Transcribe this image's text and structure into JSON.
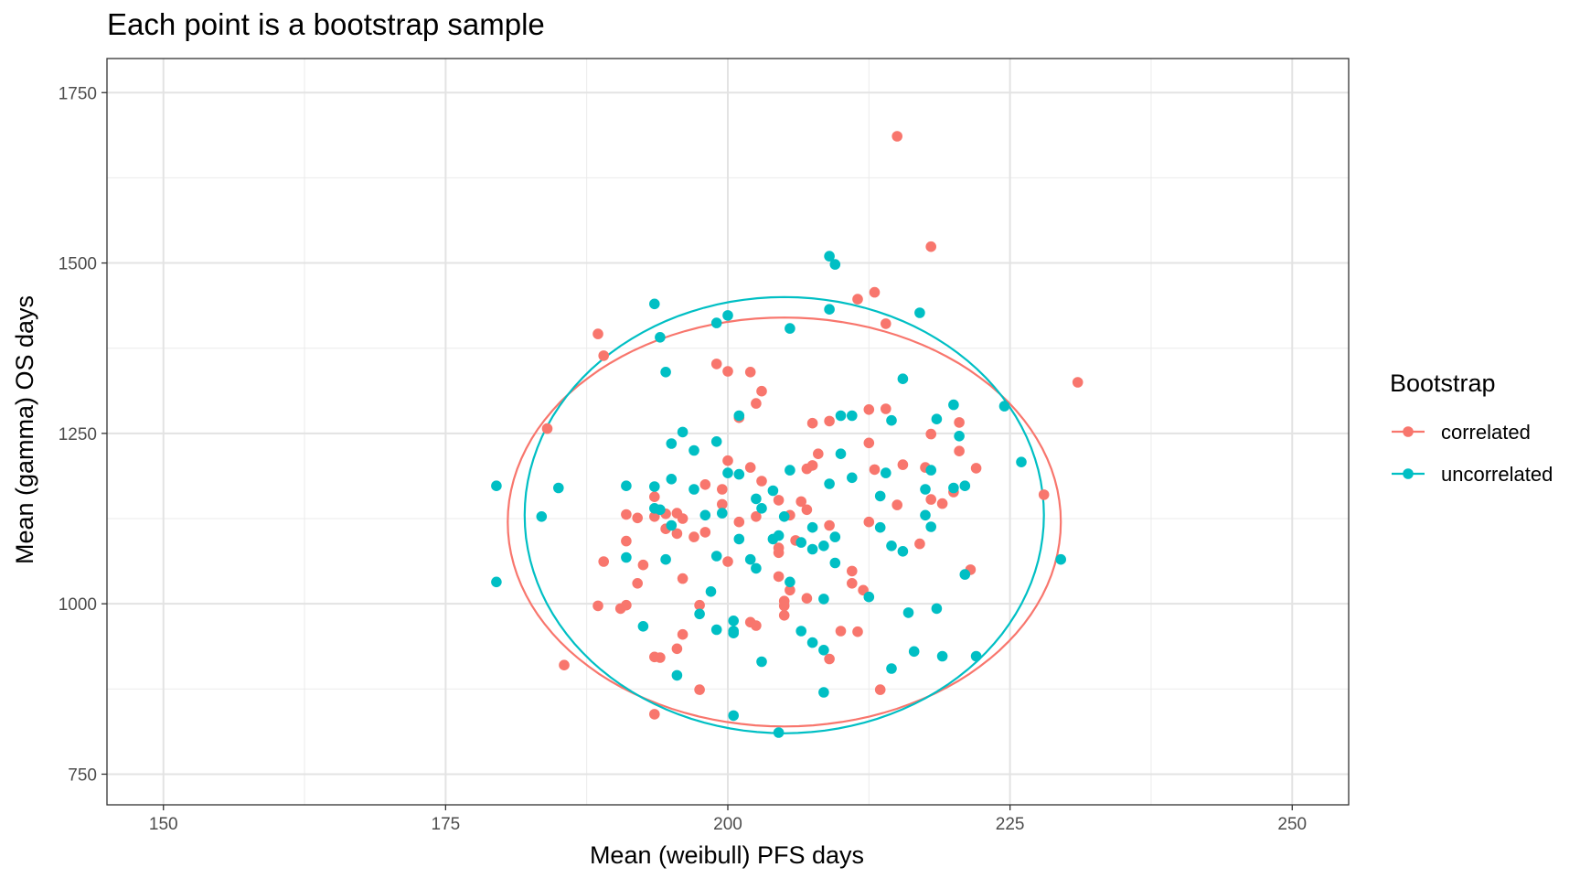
{
  "chart_data": {
    "type": "scatter",
    "title": "Each point is a bootstrap sample",
    "xlabel": "Mean (weibull) PFS days",
    "ylabel": "Mean (gamma) OS days",
    "xlim": [
      145,
      255
    ],
    "ylim": [
      705,
      1800
    ],
    "x_ticks": [
      150,
      175,
      200,
      225,
      250
    ],
    "y_ticks": [
      750,
      1000,
      1250,
      1500,
      1750
    ],
    "grid": true,
    "legend": {
      "title": "Bootstrap",
      "position": "right"
    },
    "series": [
      {
        "name": "correlated",
        "color": "#F8766D",
        "ellipse": {
          "center": [
            205,
            1120
          ],
          "semi_axes": [
            24.5,
            300
          ],
          "rotation_deg": 33
        },
        "points": [
          [
            215,
            1686
          ],
          [
            218,
            1524
          ],
          [
            213,
            1457
          ],
          [
            211.5,
            1447
          ],
          [
            214,
            1411
          ],
          [
            188.5,
            1396
          ],
          [
            189,
            1364
          ],
          [
            199,
            1352
          ],
          [
            200,
            1341
          ],
          [
            202,
            1340
          ],
          [
            231,
            1325
          ],
          [
            203,
            1312
          ],
          [
            202.5,
            1294
          ],
          [
            212.5,
            1285
          ],
          [
            214,
            1286
          ],
          [
            201,
            1273
          ],
          [
            209,
            1268
          ],
          [
            220.5,
            1266
          ],
          [
            207.5,
            1265
          ],
          [
            184,
            1257
          ],
          [
            218,
            1249
          ],
          [
            212.5,
            1236
          ],
          [
            208,
            1220
          ],
          [
            220.5,
            1224
          ],
          [
            200,
            1210
          ],
          [
            215.5,
            1204
          ],
          [
            207.5,
            1203
          ],
          [
            217.5,
            1200
          ],
          [
            202,
            1200
          ],
          [
            222,
            1199
          ],
          [
            213,
            1197
          ],
          [
            207,
            1198
          ],
          [
            203,
            1180
          ],
          [
            198,
            1175
          ],
          [
            199.5,
            1168
          ],
          [
            220,
            1164
          ],
          [
            228,
            1160
          ],
          [
            193.5,
            1157
          ],
          [
            204.5,
            1152
          ],
          [
            218,
            1153
          ],
          [
            206.5,
            1150
          ],
          [
            199.5,
            1146
          ],
          [
            219,
            1147
          ],
          [
            215,
            1145
          ],
          [
            207,
            1138
          ],
          [
            195.5,
            1133
          ],
          [
            191,
            1131
          ],
          [
            194.5,
            1132
          ],
          [
            205.5,
            1130
          ],
          [
            193.5,
            1128
          ],
          [
            192,
            1126
          ],
          [
            201,
            1120
          ],
          [
            209,
            1115
          ],
          [
            212.5,
            1120
          ],
          [
            196,
            1125
          ],
          [
            202.5,
            1128
          ],
          [
            194.5,
            1110
          ],
          [
            198,
            1105
          ],
          [
            195.5,
            1103
          ],
          [
            197,
            1098
          ],
          [
            206,
            1093
          ],
          [
            191,
            1092
          ],
          [
            217,
            1088
          ],
          [
            204.5,
            1082
          ],
          [
            204.5,
            1075
          ],
          [
            189,
            1062
          ],
          [
            192.5,
            1057
          ],
          [
            200,
            1062
          ],
          [
            221.5,
            1050
          ],
          [
            211,
            1048
          ],
          [
            204.5,
            1040
          ],
          [
            196,
            1037
          ],
          [
            192,
            1030
          ],
          [
            211,
            1030
          ],
          [
            212,
            1020
          ],
          [
            205.5,
            1020
          ],
          [
            207,
            1008
          ],
          [
            205,
            1004
          ],
          [
            205,
            997
          ],
          [
            188.5,
            997
          ],
          [
            190.5,
            993
          ],
          [
            191,
            998
          ],
          [
            197.5,
            998
          ],
          [
            205,
            983
          ],
          [
            202,
            973
          ],
          [
            202.5,
            968
          ],
          [
            210,
            960
          ],
          [
            211.5,
            959
          ],
          [
            196,
            955
          ],
          [
            195.5,
            934
          ],
          [
            193.5,
            922
          ],
          [
            194,
            921
          ],
          [
            209,
            919
          ],
          [
            185.5,
            910
          ],
          [
            197.5,
            874
          ],
          [
            213.5,
            874
          ],
          [
            193.5,
            838
          ]
        ]
      },
      {
        "name": "uncorrelated",
        "color": "#00BFC4",
        "ellipse": {
          "center": [
            205,
            1130
          ],
          "semi_axes": [
            23,
            320
          ],
          "rotation_deg": 0
        },
        "points": [
          [
            209,
            1510
          ],
          [
            209.5,
            1498
          ],
          [
            193.5,
            1440
          ],
          [
            209,
            1432
          ],
          [
            217,
            1427
          ],
          [
            200,
            1423
          ],
          [
            199,
            1412
          ],
          [
            205.5,
            1404
          ],
          [
            194,
            1391
          ],
          [
            194.5,
            1340
          ],
          [
            215.5,
            1330
          ],
          [
            224.5,
            1290
          ],
          [
            220,
            1292
          ],
          [
            201,
            1276
          ],
          [
            210,
            1276
          ],
          [
            211,
            1276
          ],
          [
            218.5,
            1271
          ],
          [
            214.5,
            1269
          ],
          [
            196,
            1252
          ],
          [
            220.5,
            1246
          ],
          [
            199,
            1238
          ],
          [
            195,
            1235
          ],
          [
            197,
            1225
          ],
          [
            210,
            1220
          ],
          [
            226,
            1208
          ],
          [
            205.5,
            1196
          ],
          [
            214,
            1192
          ],
          [
            200,
            1192
          ],
          [
            201,
            1190
          ],
          [
            218,
            1196
          ],
          [
            211,
            1185
          ],
          [
            195,
            1183
          ],
          [
            179.5,
            1173
          ],
          [
            191,
            1173
          ],
          [
            193.5,
            1172
          ],
          [
            209,
            1176
          ],
          [
            220,
            1170
          ],
          [
            221,
            1173
          ],
          [
            185,
            1170
          ],
          [
            197,
            1168
          ],
          [
            204,
            1166
          ],
          [
            217.5,
            1168
          ],
          [
            213.5,
            1158
          ],
          [
            202.5,
            1154
          ],
          [
            203,
            1140
          ],
          [
            193.5,
            1140
          ],
          [
            194,
            1138
          ],
          [
            199.5,
            1133
          ],
          [
            198,
            1130
          ],
          [
            217.5,
            1130
          ],
          [
            183.5,
            1128
          ],
          [
            205,
            1128
          ],
          [
            195,
            1115
          ],
          [
            213.5,
            1112
          ],
          [
            207.5,
            1112
          ],
          [
            218,
            1113
          ],
          [
            209.5,
            1098
          ],
          [
            201,
            1095
          ],
          [
            204,
            1095
          ],
          [
            204.5,
            1100
          ],
          [
            206.5,
            1090
          ],
          [
            208.5,
            1085
          ],
          [
            207.5,
            1080
          ],
          [
            214.5,
            1085
          ],
          [
            215.5,
            1077
          ],
          [
            199,
            1070
          ],
          [
            191,
            1068
          ],
          [
            194.5,
            1065
          ],
          [
            202,
            1065
          ],
          [
            209.5,
            1060
          ],
          [
            229.5,
            1065
          ],
          [
            202.5,
            1052
          ],
          [
            221,
            1043
          ],
          [
            179.5,
            1032
          ],
          [
            205.5,
            1032
          ],
          [
            198.5,
            1018
          ],
          [
            212.5,
            1010
          ],
          [
            208.5,
            1007
          ],
          [
            218.5,
            993
          ],
          [
            197.5,
            985
          ],
          [
            216,
            987
          ],
          [
            200.5,
            975
          ],
          [
            192.5,
            967
          ],
          [
            200.5,
            960
          ],
          [
            199,
            962
          ],
          [
            200.5,
            957
          ],
          [
            206.5,
            960
          ],
          [
            207.5,
            943
          ],
          [
            208.5,
            932
          ],
          [
            216.5,
            930
          ],
          [
            222,
            923
          ],
          [
            219,
            923
          ],
          [
            203,
            915
          ],
          [
            214.5,
            905
          ],
          [
            195.5,
            895
          ],
          [
            208.5,
            870
          ],
          [
            200.5,
            836
          ],
          [
            204.5,
            811
          ]
        ]
      }
    ]
  }
}
